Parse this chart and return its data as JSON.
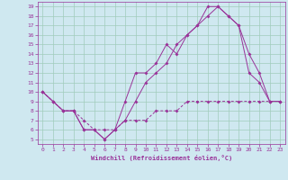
{
  "xlabel": "Windchill (Refroidissement éolien,°C)",
  "bg_color": "#cfe8f0",
  "grid_color": "#a0ccbb",
  "line_color": "#993399",
  "xlim": [
    -0.5,
    23.5
  ],
  "ylim": [
    4.5,
    19.5
  ],
  "xticks": [
    0,
    1,
    2,
    3,
    4,
    5,
    6,
    7,
    8,
    9,
    10,
    11,
    12,
    13,
    14,
    15,
    16,
    17,
    18,
    19,
    20,
    21,
    22,
    23
  ],
  "yticks": [
    5,
    6,
    7,
    8,
    9,
    10,
    11,
    12,
    13,
    14,
    15,
    16,
    17,
    18,
    19
  ],
  "line1_x": [
    0,
    1,
    2,
    3,
    4,
    5,
    6,
    7,
    8,
    9,
    10,
    11,
    12,
    13,
    14,
    15,
    16,
    17,
    18,
    19,
    20,
    21,
    22,
    23
  ],
  "line1_y": [
    10,
    9,
    8,
    8,
    6,
    6,
    5,
    6,
    9,
    12,
    12,
    13,
    15,
    14,
    16,
    17,
    19,
    19,
    18,
    17,
    14,
    12,
    9,
    9
  ],
  "line2_x": [
    0,
    1,
    2,
    3,
    4,
    5,
    6,
    7,
    8,
    9,
    10,
    11,
    12,
    13,
    14,
    15,
    16,
    17,
    18,
    19,
    20,
    21,
    22,
    23
  ],
  "line2_y": [
    10,
    9,
    8,
    8,
    6,
    6,
    5,
    6,
    7,
    9,
    11,
    12,
    13,
    15,
    16,
    17,
    18,
    19,
    18,
    17,
    12,
    11,
    9,
    9
  ],
  "line3_x": [
    0,
    1,
    2,
    3,
    4,
    5,
    6,
    7,
    8,
    9,
    10,
    11,
    12,
    13,
    14,
    15,
    16,
    17,
    18,
    19,
    20,
    21,
    22,
    23
  ],
  "line3_y": [
    10,
    9,
    8,
    8,
    7,
    6,
    6,
    6,
    7,
    7,
    7,
    8,
    8,
    8,
    9,
    9,
    9,
    9,
    9,
    9,
    9,
    9,
    9,
    9
  ]
}
